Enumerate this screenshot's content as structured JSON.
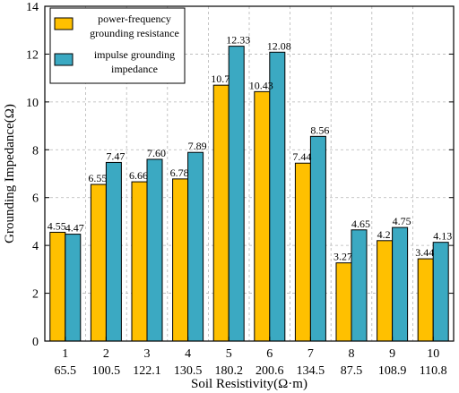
{
  "chart_data": {
    "type": "bar",
    "xlabel": "Soil Resistivity(Ω·m)",
    "ylabel": "Grounding Impedance(Ω)",
    "ylim": [
      0,
      14
    ],
    "yticks": [
      "0",
      "2",
      "4",
      "6",
      "8",
      "10",
      "12",
      "14"
    ],
    "grid": true,
    "legend_position": "top-left",
    "categories": [
      "1",
      "2",
      "3",
      "4",
      "5",
      "6",
      "7",
      "8",
      "9",
      "10"
    ],
    "categories_line2": [
      "65.5",
      "100.5",
      "122.1",
      "130.5",
      "180.2",
      "200.6",
      "134.5",
      "87.5",
      "108.9",
      "110.8"
    ],
    "series": [
      {
        "name": "power-frequency grounding resistance",
        "legend_lines": [
          "power-frequency",
          "grounding resistance"
        ],
        "color": "#FFC000",
        "values": [
          4.55,
          6.55,
          6.66,
          6.78,
          10.7,
          10.43,
          7.44,
          3.27,
          4.2,
          3.44
        ],
        "labels": [
          "4.55",
          "6.55",
          "6.66",
          "6.78",
          "10.7",
          "10.43",
          "7.44",
          "3.27",
          "4.2",
          "3.44"
        ]
      },
      {
        "name": "impulse grounding impedance",
        "legend_lines": [
          "impulse grounding",
          "impedance"
        ],
        "color": "#3BA9C2",
        "values": [
          4.47,
          7.47,
          7.6,
          7.89,
          12.33,
          12.08,
          8.56,
          4.65,
          4.75,
          4.13
        ],
        "labels": [
          "4.47",
          "7.47",
          "7.60",
          "7.89",
          "12.33",
          "12.08",
          "8.56",
          "4.65",
          "4.75",
          "4.13"
        ]
      }
    ]
  }
}
